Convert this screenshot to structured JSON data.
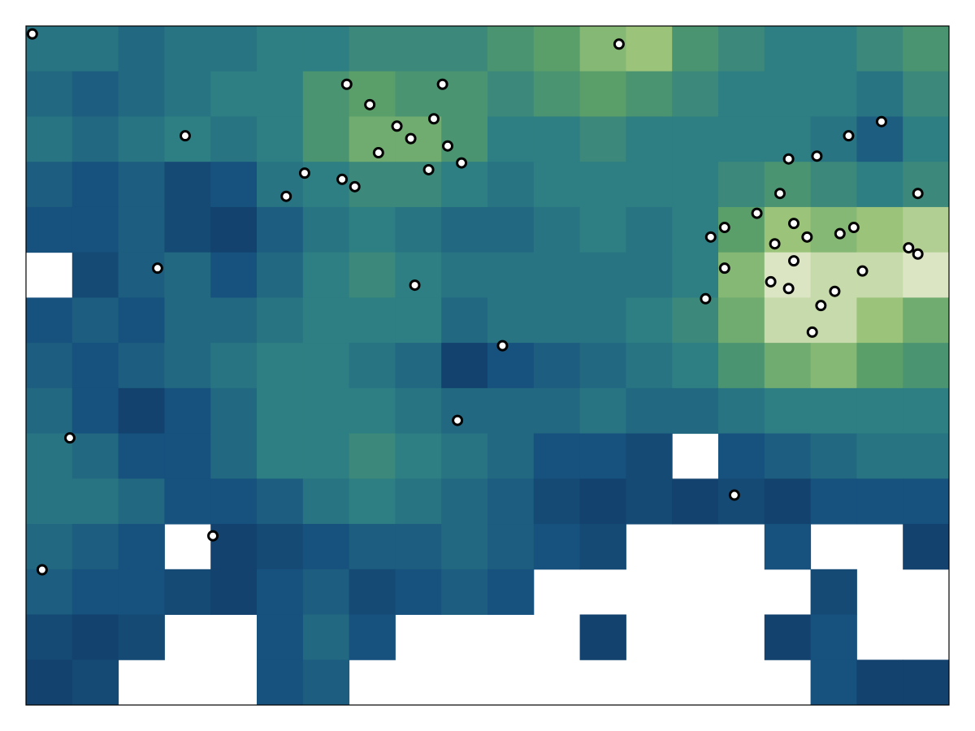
{
  "chart_data": {
    "type": "heatmap",
    "xlim": [
      0,
      160
    ],
    "ylim": [
      120,
      0
    ],
    "clim": [
      0,
      1
    ],
    "colormap": [
      "#08254a",
      "#17517e",
      "#2d7f83",
      "#5a9e6a",
      "#9bc47a",
      "#f2f0dc"
    ],
    "colormap_stops": [
      0,
      0.3,
      0.5,
      0.65,
      0.8,
      1
    ],
    "values": [
      [
        0.45,
        0.45,
        0.4,
        0.45,
        0.45,
        0.5,
        0.5,
        0.55,
        0.55,
        0.55,
        0.6,
        0.65,
        0.75,
        0.8,
        0.6,
        0.55,
        0.5,
        0.5,
        0.55,
        0.6
      ],
      [
        0.4,
        0.35,
        0.4,
        0.45,
        0.5,
        0.5,
        0.6,
        0.65,
        0.6,
        0.6,
        0.55,
        0.6,
        0.65,
        0.6,
        0.55,
        0.5,
        0.5,
        0.5,
        0.45,
        0.55
      ],
      [
        0.45,
        0.4,
        0.45,
        0.5,
        0.45,
        0.5,
        0.6,
        0.7,
        0.7,
        0.6,
        0.5,
        0.5,
        0.55,
        0.5,
        0.5,
        0.5,
        0.5,
        0.45,
        0.35,
        0.5
      ],
      [
        0.35,
        0.3,
        0.35,
        0.25,
        0.3,
        0.45,
        0.5,
        0.55,
        0.55,
        0.5,
        0.45,
        0.5,
        0.5,
        0.5,
        0.5,
        0.55,
        0.6,
        0.55,
        0.5,
        0.55
      ],
      [
        0.3,
        0.3,
        0.35,
        0.25,
        0.2,
        0.35,
        0.45,
        0.5,
        0.45,
        0.4,
        0.4,
        0.45,
        0.5,
        0.45,
        0.5,
        0.65,
        0.8,
        0.75,
        0.8,
        0.85
      ],
      [
        null,
        0.25,
        0.35,
        0.4,
        0.3,
        0.4,
        0.5,
        0.55,
        0.5,
        0.45,
        0.45,
        0.45,
        0.45,
        0.45,
        0.5,
        0.75,
        0.95,
        0.9,
        0.9,
        0.95
      ],
      [
        0.3,
        0.35,
        0.3,
        0.4,
        0.4,
        0.45,
        0.5,
        0.5,
        0.5,
        0.4,
        0.45,
        0.45,
        0.45,
        0.5,
        0.55,
        0.7,
        0.9,
        0.9,
        0.8,
        0.7
      ],
      [
        0.35,
        0.3,
        0.35,
        0.4,
        0.45,
        0.5,
        0.5,
        0.45,
        0.4,
        0.2,
        0.3,
        0.35,
        0.4,
        0.45,
        0.5,
        0.6,
        0.7,
        0.75,
        0.65,
        0.6
      ],
      [
        0.4,
        0.3,
        0.2,
        0.3,
        0.4,
        0.5,
        0.5,
        0.5,
        0.45,
        0.4,
        0.4,
        0.4,
        0.45,
        0.4,
        0.4,
        0.45,
        0.5,
        0.5,
        0.5,
        0.5
      ],
      [
        0.45,
        0.4,
        0.3,
        0.3,
        0.4,
        0.5,
        0.5,
        0.55,
        0.5,
        0.45,
        0.4,
        0.3,
        0.3,
        0.25,
        null,
        0.3,
        0.35,
        0.4,
        0.45,
        0.45
      ],
      [
        0.45,
        0.45,
        0.4,
        0.3,
        0.3,
        0.35,
        0.45,
        0.5,
        0.45,
        0.4,
        0.35,
        0.25,
        0.2,
        0.25,
        0.2,
        0.25,
        0.2,
        0.3,
        0.3,
        0.3
      ],
      [
        0.4,
        0.35,
        0.3,
        null,
        0.2,
        0.25,
        0.3,
        0.35,
        0.35,
        0.4,
        0.35,
        0.3,
        0.25,
        null,
        null,
        null,
        0.3,
        null,
        null,
        0.2
      ],
      [
        0.35,
        0.3,
        0.3,
        0.25,
        0.2,
        0.3,
        0.35,
        0.25,
        0.3,
        0.35,
        0.3,
        null,
        null,
        null,
        null,
        null,
        null,
        0.25,
        null,
        null
      ],
      [
        0.25,
        0.2,
        0.25,
        null,
        null,
        0.3,
        0.4,
        0.3,
        null,
        null,
        null,
        null,
        0.2,
        null,
        null,
        null,
        0.2,
        0.3,
        null,
        null
      ],
      [
        0.2,
        0.25,
        null,
        null,
        null,
        0.3,
        0.35,
        null,
        null,
        null,
        null,
        null,
        null,
        null,
        null,
        null,
        null,
        0.3,
        0.2,
        0.2
      ]
    ],
    "points": {
      "color": "#ffffff",
      "edgecolor": "#000000",
      "x": [
        1.1,
        102.8,
        55.6,
        72.2,
        59.6,
        70.7,
        64.3,
        66.7,
        27.6,
        61.1,
        73.1,
        75.5,
        69.8,
        48.3,
        54.8,
        57.0,
        45.1,
        148.3,
        142.6,
        137.1,
        132.2,
        130.7,
        154.6,
        126.7,
        121.1,
        118.7,
        133.1,
        143.5,
        141.1,
        135.4,
        129.8,
        153.0,
        154.6,
        121.1,
        133.1,
        145.0,
        129.1,
        132.2,
        140.2,
        117.8,
        137.8,
        136.3,
        22.8,
        67.4,
        82.6,
        74.8,
        7.6,
        122.8,
        32.4,
        2.8
      ],
      "y": [
        1.4,
        3.2,
        10.3,
        10.3,
        13.9,
        16.4,
        17.7,
        19.9,
        19.4,
        22.4,
        21.2,
        24.2,
        25.4,
        26.0,
        27.1,
        28.4,
        30.1,
        16.9,
        19.4,
        23.0,
        23.5,
        29.6,
        29.6,
        33.1,
        35.6,
        37.3,
        34.9,
        35.6,
        36.7,
        37.3,
        38.5,
        39.2,
        40.3,
        42.8,
        41.5,
        43.3,
        45.2,
        46.4,
        46.9,
        48.2,
        49.4,
        54.1,
        42.8,
        45.8,
        56.5,
        69.7,
        72.8,
        82.9,
        90.1,
        96.1
      ]
    }
  }
}
